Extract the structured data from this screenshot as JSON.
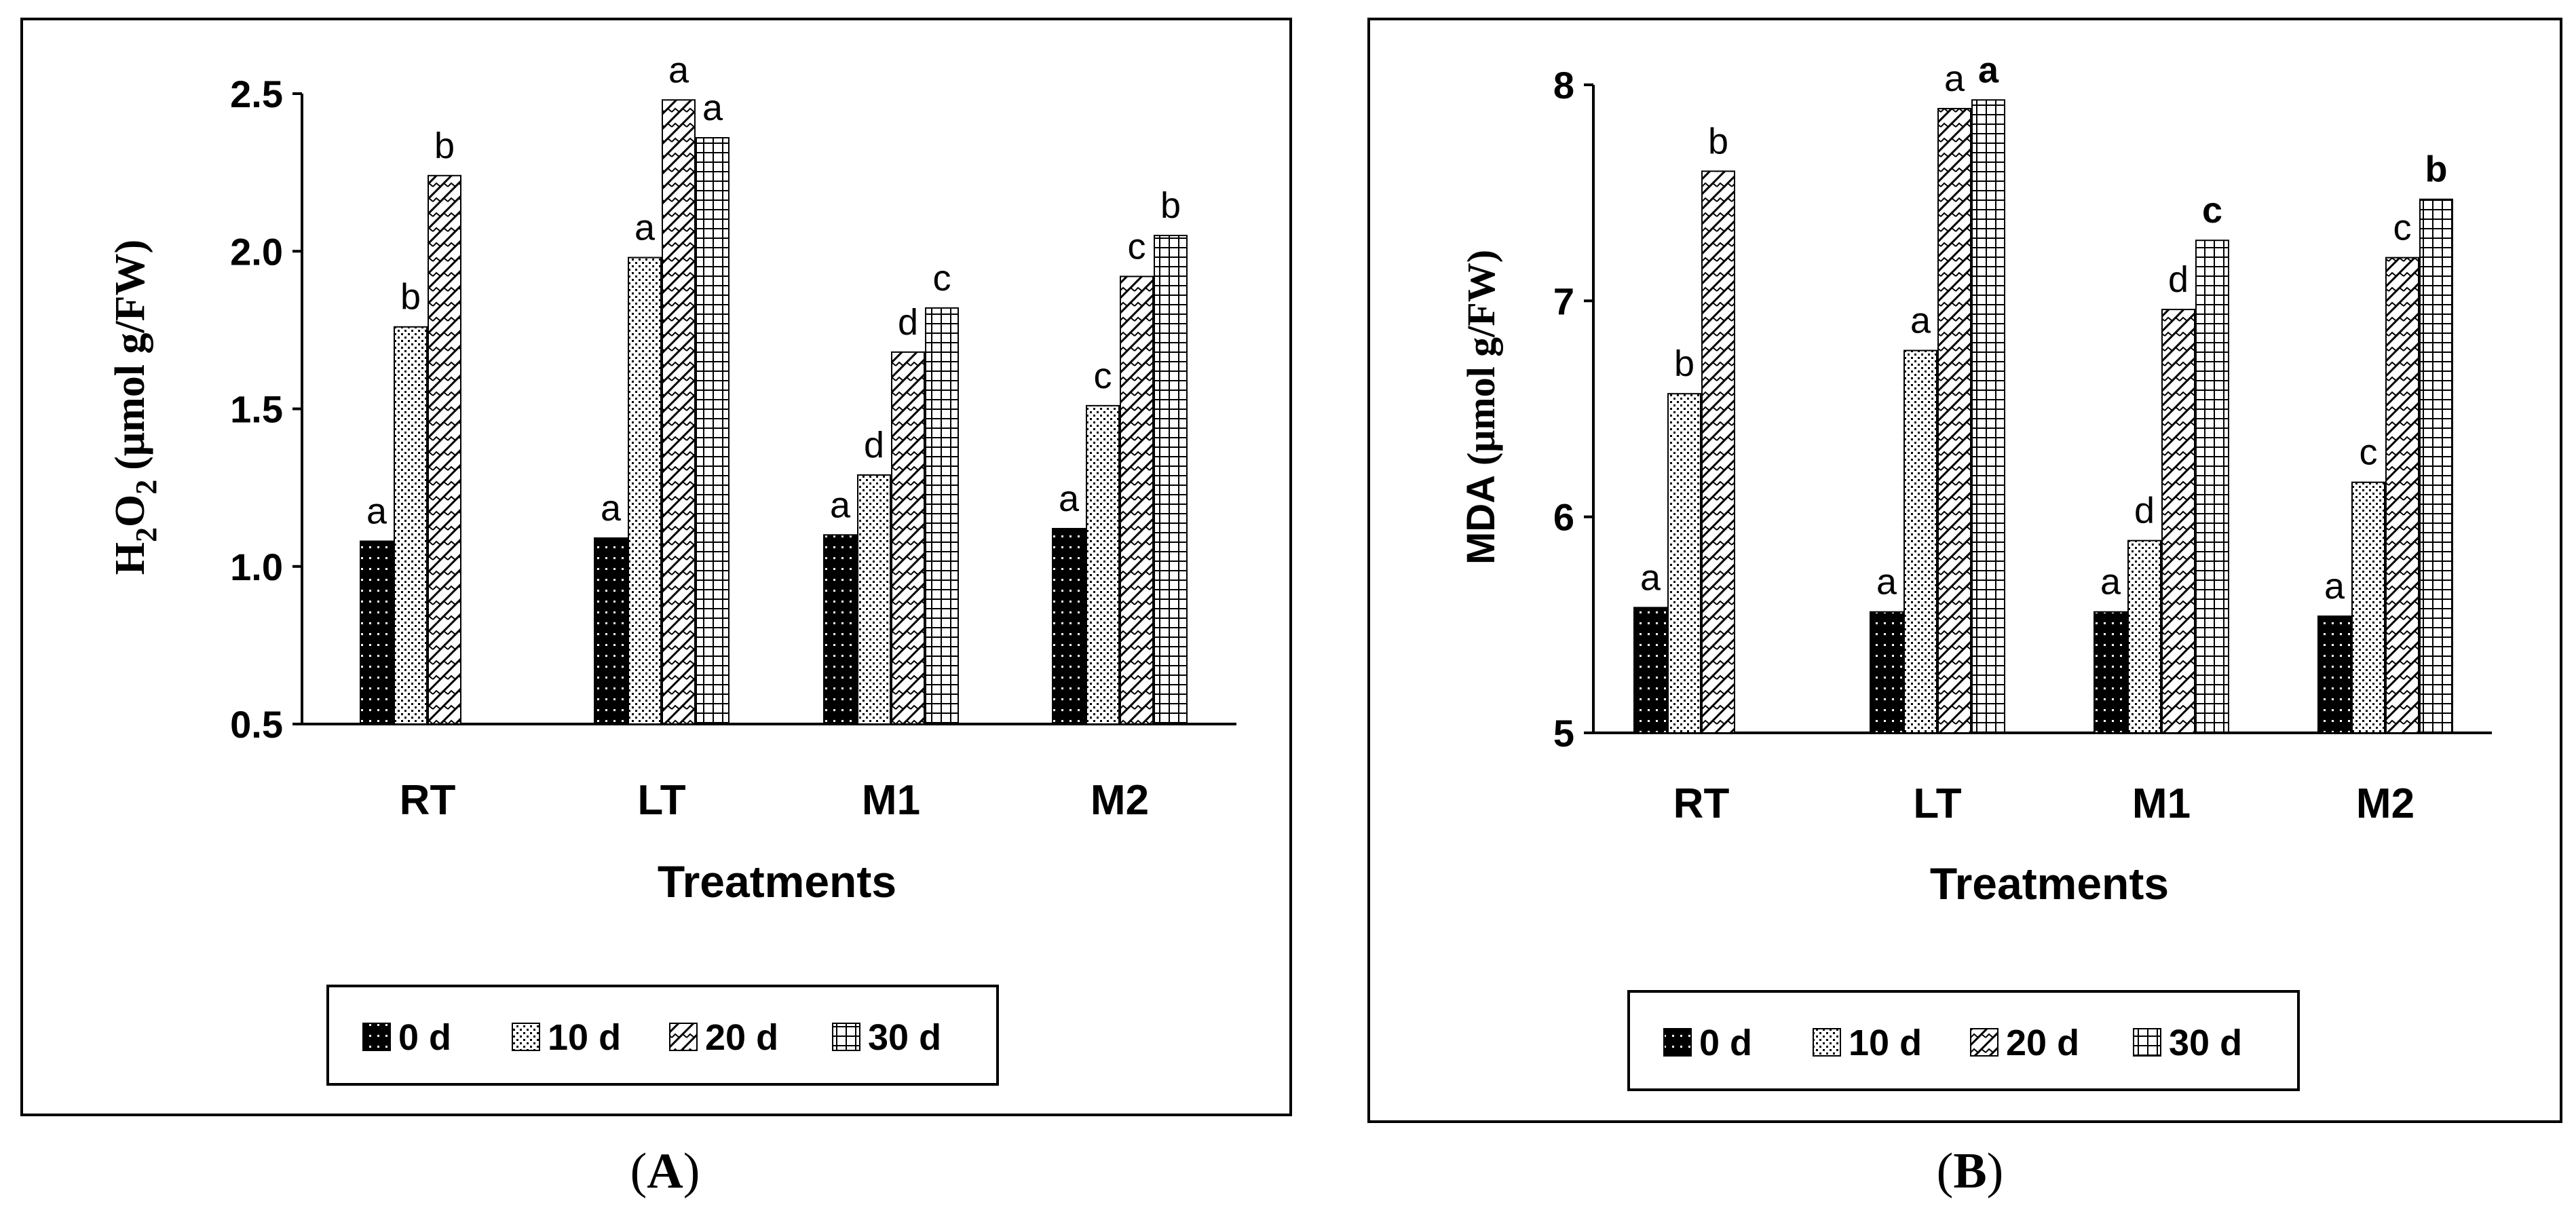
{
  "chart_data": [
    {
      "panel_label": "A",
      "type": "bar",
      "ylabel": {
        "main": "H",
        "sub1": "2",
        "mid": "O",
        "sub2": "2",
        "unit": "(μmol g/FW)"
      },
      "xlabel": "Treatments",
      "ylim": [
        0.5,
        2.5
      ],
      "ytick_values": [
        0.5,
        1.0,
        1.5,
        2.0,
        2.5
      ],
      "ytick_labels": [
        "0.5",
        "1.0",
        "1.5",
        "2.0",
        "2.5"
      ],
      "categories": [
        "RT",
        "LT",
        "M1",
        "M2"
      ],
      "series": [
        {
          "name": "0 d",
          "pattern": "dots-dark",
          "values": [
            1.08,
            1.09,
            1.1,
            1.12
          ],
          "letters": [
            "a",
            "a",
            "a",
            "a"
          ]
        },
        {
          "name": "10 d",
          "pattern": "dots-light",
          "values": [
            1.76,
            1.98,
            1.29,
            1.51
          ],
          "letters": [
            "b",
            "a",
            "d",
            "c"
          ]
        },
        {
          "name": "20 d",
          "pattern": "zigzag",
          "values": [
            2.24,
            2.48,
            1.68,
            1.92
          ],
          "letters": [
            "b",
            "a",
            "d",
            "c"
          ]
        },
        {
          "name": "30 d",
          "pattern": "grid",
          "values": [
            null,
            2.36,
            1.82,
            2.05
          ],
          "letters": [
            "",
            "a",
            "c",
            "b"
          ]
        }
      ],
      "legend_position": "bottom"
    },
    {
      "panel_label": "B",
      "type": "bar",
      "ylabel": {
        "main": "MDA",
        "unit": "(μmol g/FW)"
      },
      "xlabel": "Treatments",
      "ylim": [
        5,
        8
      ],
      "ytick_values": [
        5,
        6,
        7,
        8
      ],
      "ytick_labels": [
        "5",
        "6",
        "7",
        "8"
      ],
      "categories": [
        "RT",
        "LT",
        "M1",
        "M2"
      ],
      "series": [
        {
          "name": "0 d",
          "pattern": "dots-dark",
          "values": [
            5.58,
            5.56,
            5.56,
            5.54
          ],
          "letters": [
            "a",
            "a",
            "a",
            "a"
          ]
        },
        {
          "name": "10 d",
          "pattern": "dots-light",
          "values": [
            6.57,
            6.77,
            5.89,
            6.16
          ],
          "letters": [
            "b",
            "a",
            "d",
            "c"
          ]
        },
        {
          "name": "20 d",
          "pattern": "zigzag",
          "values": [
            7.6,
            7.89,
            6.96,
            7.2
          ],
          "letters": [
            "b",
            "a",
            "d",
            "c"
          ]
        },
        {
          "name": "30 d",
          "pattern": "grid",
          "values": [
            null,
            7.93,
            7.28,
            7.47
          ],
          "letters": [
            "",
            "a",
            "c",
            "b"
          ]
        }
      ],
      "letter_styles_30d": [
        "normal",
        "bold",
        "bold",
        "bold-gray"
      ],
      "legend_position": "bottom"
    }
  ],
  "colors": {
    "ink": "#000000",
    "background": "#ffffff",
    "gray_letter": "#666666"
  }
}
